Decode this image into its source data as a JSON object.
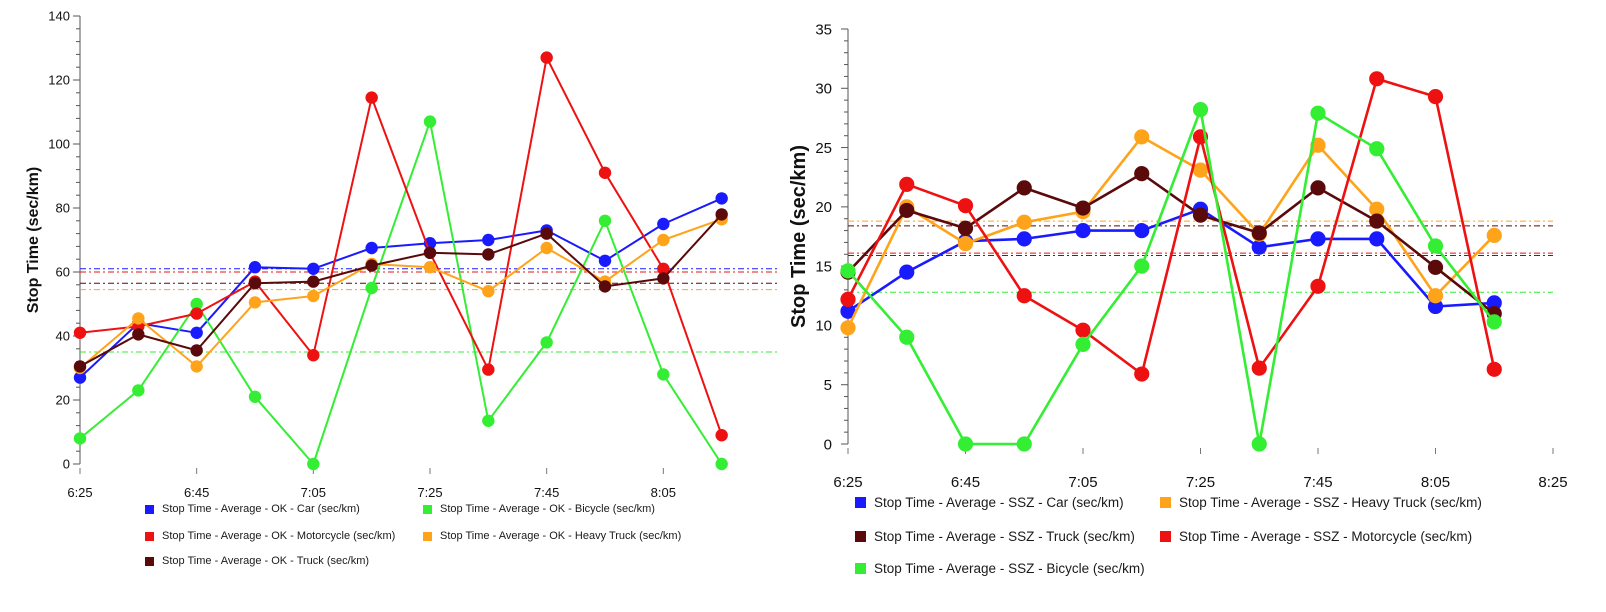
{
  "chart_data": [
    {
      "type": "line",
      "ylabel": "Stop Time (sec/km)",
      "ylim": [
        0,
        140
      ],
      "yticks": [
        0,
        20,
        40,
        60,
        80,
        100,
        120,
        140
      ],
      "xlim": [
        "6:25",
        "8:25"
      ],
      "xtick_labels": [
        "6:25",
        "6:45",
        "7:05",
        "7:25",
        "7:45",
        "8:05"
      ],
      "x": [
        "6:25",
        "6:35",
        "6:45",
        "6:55",
        "7:05",
        "7:15",
        "7:25",
        "7:35",
        "7:45",
        "7:55",
        "8:05",
        "8:15"
      ],
      "grid": false,
      "legend_position": "bottom",
      "series": [
        {
          "name": "Stop Time - Average - OK - Car (sec/km)",
          "color": "#1a1aff",
          "values": [
            27,
            44,
            41,
            61.5,
            61,
            67.5,
            69,
            70,
            73,
            63.5,
            75,
            83
          ],
          "mean": 61
        },
        {
          "name": "Stop Time - Average - OK - Bicycle (sec/km)",
          "color": "#33ee33",
          "values": [
            8,
            23,
            50,
            21,
            0,
            55,
            107,
            13.5,
            38,
            76,
            28,
            0
          ],
          "mean": 35
        },
        {
          "name": "Stop Time - Average - OK - Motorcycle (sec/km)",
          "color": "#ee1111",
          "values": [
            41,
            43,
            47,
            57,
            34,
            114.5,
            66,
            29.5,
            127,
            91,
            61,
            9
          ],
          "mean": 60
        },
        {
          "name": "Stop Time - Average - OK - Heavy Truck (sec/km)",
          "color": "#ffa31a",
          "values": [
            30,
            45.5,
            30.5,
            50.5,
            52.5,
            62.5,
            61.5,
            54,
            67.5,
            57,
            70,
            76.5
          ],
          "mean": 54.5
        },
        {
          "name": "Stop Time - Average - OK - Truck (sec/km)",
          "color": "#5a0a0a",
          "values": [
            30.5,
            40.5,
            35.5,
            56.5,
            57,
            62,
            66,
            65.5,
            72,
            55.5,
            58,
            78
          ],
          "mean": 56.5
        }
      ]
    },
    {
      "type": "line",
      "ylabel": "Stop Time (sec/km)",
      "ylim": [
        0,
        35
      ],
      "yticks": [
        0,
        5,
        10,
        15,
        20,
        25,
        30,
        35
      ],
      "xlim": [
        "6:25",
        "8:25"
      ],
      "xtick_labels": [
        "6:25",
        "6:45",
        "7:05",
        "7:25",
        "7:45",
        "8:05",
        "8:25"
      ],
      "x": [
        "6:25",
        "6:35",
        "6:45",
        "6:55",
        "7:05",
        "7:15",
        "7:25",
        "7:35",
        "7:45",
        "7:55",
        "8:05",
        "8:15"
      ],
      "grid": false,
      "legend_position": "bottom",
      "series": [
        {
          "name": "Stop Time - Average - SSZ - Car (sec/km)",
          "color": "#1a1aff",
          "values": [
            11.2,
            14.5,
            17.1,
            17.3,
            18.0,
            18.0,
            19.8,
            16.6,
            17.3,
            17.3,
            11.6,
            11.9
          ],
          "mean": 15.9
        },
        {
          "name": "Stop Time - Average - SSZ - Heavy Truck (sec/km)",
          "color": "#ffa31a",
          "values": [
            9.8,
            20.0,
            16.9,
            18.7,
            19.6,
            25.9,
            23.1,
            17.7,
            25.2,
            19.8,
            12.5,
            17.6
          ],
          "mean": 18.8
        },
        {
          "name": "Stop Time - Average - SSZ - Truck (sec/km)",
          "color": "#5a0a0a",
          "values": [
            14.5,
            19.7,
            18.2,
            21.6,
            19.9,
            22.8,
            19.3,
            17.8,
            21.6,
            18.8,
            14.9,
            11.0
          ],
          "mean": 18.4
        },
        {
          "name": "Stop Time - Average - SSZ - Motorcycle (sec/km)",
          "color": "#ee1111",
          "values": [
            12.2,
            21.9,
            20.1,
            12.5,
            9.6,
            5.9,
            25.9,
            6.4,
            13.3,
            30.8,
            29.3,
            6.3
          ],
          "mean": 16.1
        },
        {
          "name": "Stop Time - Average - SSZ - Bicycle (sec/km)",
          "color": "#33ee33",
          "values": [
            14.6,
            9.0,
            0,
            0,
            8.4,
            15.0,
            28.2,
            0,
            27.9,
            24.9,
            16.7,
            10.3
          ],
          "mean": 12.8
        }
      ]
    }
  ]
}
